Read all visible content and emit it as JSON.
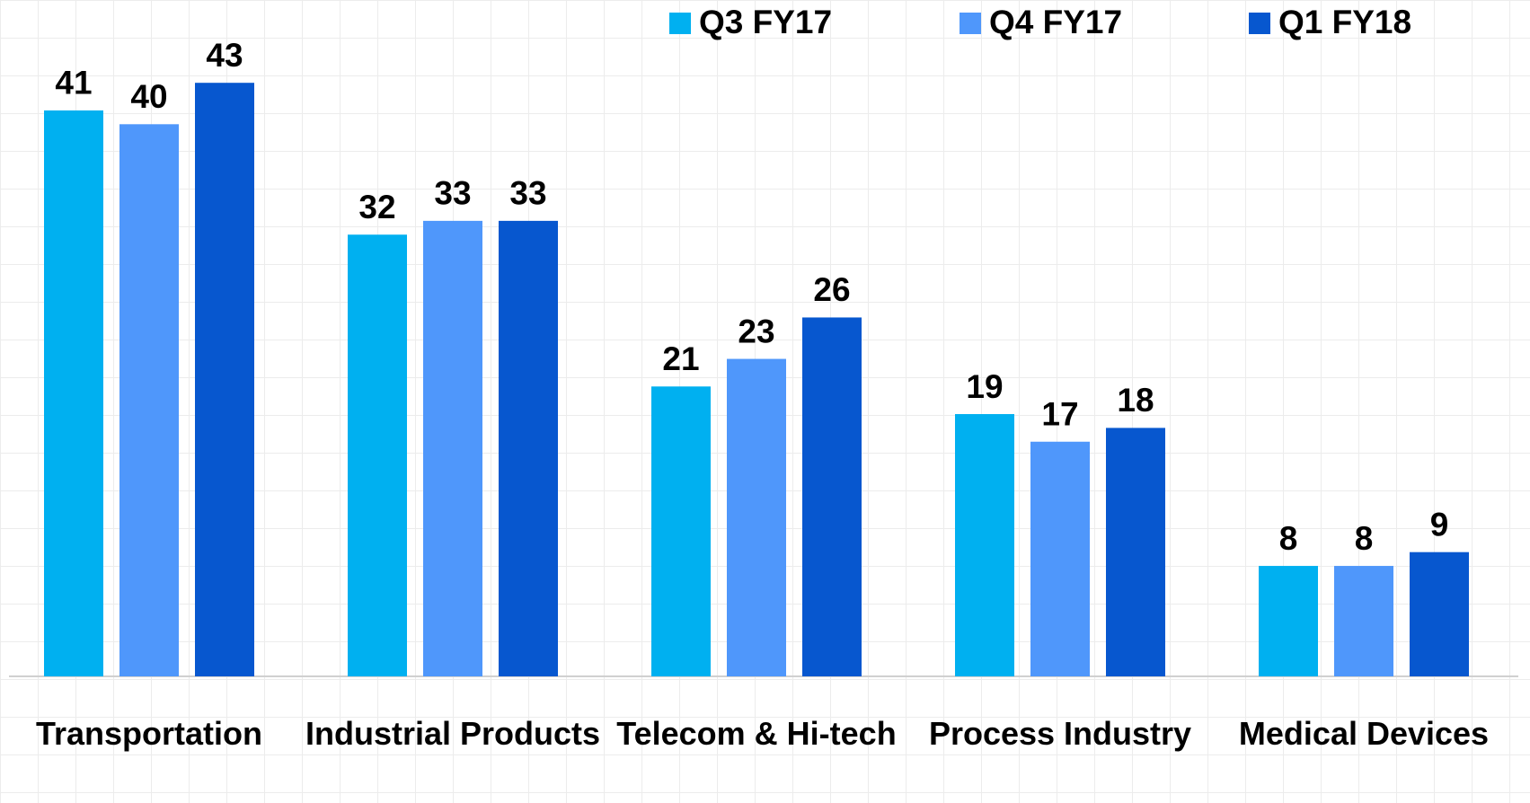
{
  "chart_data": {
    "type": "bar",
    "categories": [
      "Transportation",
      "Industrial Products",
      "Telecom & Hi-tech",
      "Process Industry",
      "Medical Devices"
    ],
    "series": [
      {
        "name": "Q3 FY17",
        "color": "#00b0f0",
        "values": [
          41,
          32,
          21,
          19,
          8
        ]
      },
      {
        "name": "Q4 FY17",
        "color": "#4f97fb",
        "values": [
          40,
          33,
          23,
          17,
          8
        ]
      },
      {
        "name": "Q1 FY18",
        "color": "#0757cf",
        "values": [
          43,
          33,
          26,
          18,
          9
        ]
      }
    ],
    "ylim": [
      0,
      49
    ],
    "legend": "top"
  }
}
